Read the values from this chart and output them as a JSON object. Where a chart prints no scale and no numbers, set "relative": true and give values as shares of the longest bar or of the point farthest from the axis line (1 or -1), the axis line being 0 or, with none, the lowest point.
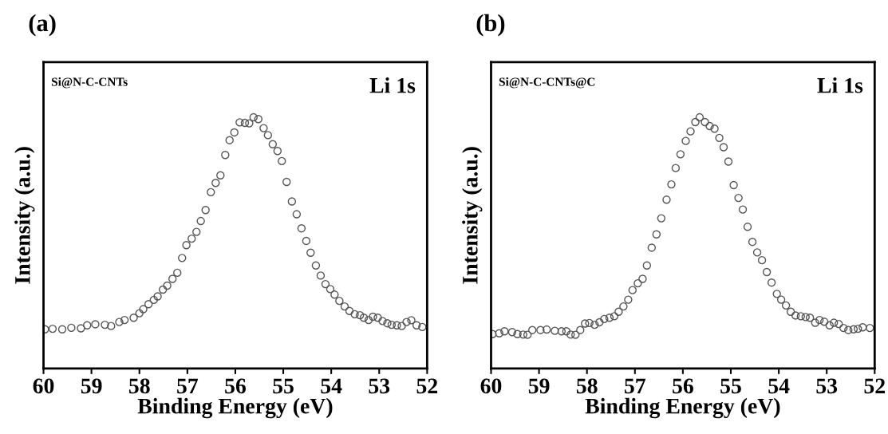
{
  "chart_data": [
    {
      "type": "scatter",
      "title": "(a)",
      "xlabel": "Binding Energy (eV)",
      "ylabel": "Intensity (a.u.)",
      "annotations": [
        "Si@N-C-CNTs",
        "Li 1s"
      ],
      "relative": true,
      "marker": "circle",
      "tick_labels": "x",
      "xlim": [
        60,
        52
      ],
      "xticks": [
        60,
        59,
        58,
        57,
        56,
        55,
        54,
        53,
        52
      ],
      "series": [
        {
          "color": "#555555",
          "x": [
            59.97,
            59.81,
            59.61,
            59.42,
            59.22,
            59.09,
            58.92,
            58.72,
            58.59,
            58.42,
            58.31,
            58.12,
            58.0,
            57.92,
            57.81,
            57.7,
            57.62,
            57.51,
            57.42,
            57.31,
            57.21,
            57.11,
            57.02,
            56.91,
            56.81,
            56.72,
            56.62,
            56.51,
            56.41,
            56.31,
            56.21,
            56.12,
            56.02,
            55.91,
            55.8,
            55.71,
            55.62,
            55.52,
            55.41,
            55.32,
            55.22,
            55.12,
            55.03,
            54.93,
            54.82,
            54.72,
            54.62,
            54.52,
            54.43,
            54.32,
            54.22,
            54.12,
            54.02,
            53.93,
            53.83,
            53.72,
            53.62,
            53.51,
            53.4,
            53.32,
            53.22,
            53.13,
            53.03,
            52.93,
            52.83,
            52.74,
            52.63,
            52.53,
            52.43,
            52.33,
            52.22,
            52.1
          ],
          "values": [
            0.156,
            0.158,
            0.156,
            0.162,
            0.16,
            0.172,
            0.176,
            0.174,
            0.169,
            0.185,
            0.193,
            0.202,
            0.22,
            0.236,
            0.256,
            0.273,
            0.287,
            0.314,
            0.33,
            0.357,
            0.381,
            0.44,
            0.491,
            0.517,
            0.544,
            0.587,
            0.631,
            0.702,
            0.739,
            0.769,
            0.85,
            0.909,
            0.94,
            0.98,
            0.978,
            0.976,
            1.0,
            0.993,
            0.957,
            0.929,
            0.893,
            0.866,
            0.826,
            0.743,
            0.665,
            0.614,
            0.558,
            0.508,
            0.461,
            0.41,
            0.37,
            0.336,
            0.316,
            0.294,
            0.269,
            0.247,
            0.229,
            0.216,
            0.212,
            0.202,
            0.193,
            0.206,
            0.202,
            0.189,
            0.18,
            0.174,
            0.172,
            0.169,
            0.185,
            0.192,
            0.172,
            0.165
          ]
        }
      ]
    },
    {
      "type": "scatter",
      "title": "(b)",
      "xlabel": "Binding Energy (eV)",
      "ylabel": "Intensity (a.u.)",
      "annotations": [
        "Si@N-C-CNTs@C",
        "Li 1s"
      ],
      "relative": true,
      "marker": "circle",
      "tick_labels": "x",
      "xlim": [
        60,
        52
      ],
      "xticks": [
        60,
        59,
        58,
        57,
        56,
        55,
        54,
        53,
        52
      ],
      "series": [
        {
          "color": "#555555",
          "x": [
            59.97,
            59.83,
            59.72,
            59.56,
            59.45,
            59.33,
            59.24,
            59.14,
            58.97,
            58.84,
            58.67,
            58.53,
            58.43,
            58.34,
            58.24,
            58.14,
            58.04,
            57.95,
            57.84,
            57.74,
            57.64,
            57.53,
            57.43,
            57.34,
            57.24,
            57.14,
            57.05,
            56.94,
            56.84,
            56.75,
            56.65,
            56.55,
            56.45,
            56.34,
            56.24,
            56.15,
            56.05,
            55.94,
            55.84,
            55.74,
            55.65,
            55.54,
            55.44,
            55.34,
            55.24,
            55.15,
            55.05,
            54.94,
            54.84,
            54.75,
            54.65,
            54.55,
            54.45,
            54.35,
            54.25,
            54.15,
            54.04,
            53.95,
            53.85,
            53.75,
            53.65,
            53.54,
            53.44,
            53.35,
            53.24,
            53.15,
            53.05,
            52.94,
            52.85,
            52.75,
            52.65,
            52.55,
            52.44,
            52.35,
            52.25,
            52.1
          ],
          "values": [
            0.137,
            0.14,
            0.148,
            0.145,
            0.137,
            0.135,
            0.134,
            0.153,
            0.153,
            0.155,
            0.15,
            0.148,
            0.148,
            0.135,
            0.134,
            0.153,
            0.179,
            0.181,
            0.174,
            0.184,
            0.197,
            0.202,
            0.208,
            0.226,
            0.247,
            0.274,
            0.312,
            0.339,
            0.357,
            0.41,
            0.481,
            0.534,
            0.598,
            0.672,
            0.733,
            0.798,
            0.853,
            0.906,
            0.944,
            0.981,
            1.0,
            0.981,
            0.965,
            0.955,
            0.918,
            0.881,
            0.824,
            0.73,
            0.679,
            0.633,
            0.564,
            0.504,
            0.462,
            0.431,
            0.384,
            0.342,
            0.297,
            0.274,
            0.251,
            0.226,
            0.211,
            0.208,
            0.205,
            0.202,
            0.182,
            0.193,
            0.186,
            0.172,
            0.182,
            0.177,
            0.161,
            0.153,
            0.156,
            0.158,
            0.164,
            0.161
          ]
        }
      ]
    }
  ]
}
